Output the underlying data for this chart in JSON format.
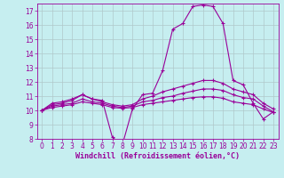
{
  "title": "",
  "xlabel": "Windchill (Refroidissement éolien,°C)",
  "background_color": "#c6eef0",
  "line_color": "#990099",
  "grid_color": "#c0d8d8",
  "xlim": [
    -0.5,
    23.5
  ],
  "ylim": [
    8,
    17.5
  ],
  "yticks": [
    8,
    9,
    10,
    11,
    12,
    13,
    14,
    15,
    16,
    17
  ],
  "xticks": [
    0,
    1,
    2,
    3,
    4,
    5,
    6,
    7,
    8,
    9,
    10,
    11,
    12,
    13,
    14,
    15,
    16,
    17,
    18,
    19,
    20,
    21,
    22,
    23
  ],
  "series": {
    "line1_x": [
      0,
      1,
      2,
      3,
      4,
      5,
      6,
      7,
      8,
      9,
      10,
      11,
      12,
      13,
      14,
      15,
      16,
      17,
      18,
      19,
      20,
      21,
      22,
      23
    ],
    "line1_y": [
      10.0,
      10.5,
      10.6,
      10.8,
      11.1,
      10.8,
      10.7,
      8.1,
      7.6,
      10.1,
      11.1,
      11.2,
      12.8,
      15.7,
      16.1,
      17.3,
      17.4,
      17.3,
      16.1,
      12.1,
      11.8,
      10.5,
      9.4,
      9.9
    ],
    "line2_x": [
      0,
      1,
      2,
      3,
      4,
      5,
      6,
      7,
      8,
      9,
      10,
      11,
      12,
      13,
      14,
      15,
      16,
      17,
      18,
      19,
      20,
      21,
      22,
      23
    ],
    "line2_y": [
      10.0,
      10.4,
      10.5,
      10.7,
      11.1,
      10.8,
      10.6,
      10.4,
      10.3,
      10.4,
      10.8,
      11.0,
      11.3,
      11.5,
      11.7,
      11.9,
      12.1,
      12.1,
      11.9,
      11.5,
      11.3,
      11.1,
      10.5,
      10.1
    ],
    "line3_x": [
      0,
      1,
      2,
      3,
      4,
      5,
      6,
      7,
      8,
      9,
      10,
      11,
      12,
      13,
      14,
      15,
      16,
      17,
      18,
      19,
      20,
      21,
      22,
      23
    ],
    "line3_y": [
      10.0,
      10.3,
      10.4,
      10.5,
      10.8,
      10.6,
      10.5,
      10.3,
      10.2,
      10.3,
      10.6,
      10.7,
      10.9,
      11.0,
      11.2,
      11.35,
      11.5,
      11.5,
      11.4,
      11.1,
      10.9,
      10.8,
      10.3,
      9.9
    ],
    "line4_x": [
      0,
      1,
      2,
      3,
      4,
      5,
      6,
      7,
      8,
      9,
      10,
      11,
      12,
      13,
      14,
      15,
      16,
      17,
      18,
      19,
      20,
      21,
      22,
      23
    ],
    "line4_y": [
      10.0,
      10.2,
      10.3,
      10.4,
      10.6,
      10.5,
      10.4,
      10.2,
      10.15,
      10.2,
      10.4,
      10.5,
      10.6,
      10.7,
      10.8,
      10.9,
      10.95,
      10.95,
      10.85,
      10.6,
      10.5,
      10.4,
      10.1,
      9.85
    ]
  },
  "marker": "+",
  "markersize": 3,
  "linewidth": 0.8,
  "tick_fontsize": 5.5,
  "xlabel_fontsize": 6.0
}
